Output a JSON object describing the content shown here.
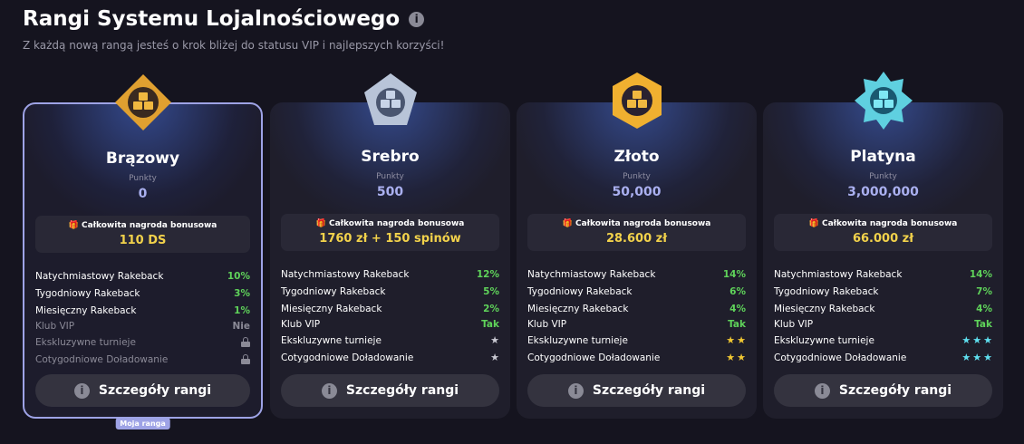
{
  "header": {
    "title": "Rangi Systemu Lojalnościowego",
    "subtitle": "Z każdą nową rangą jesteś o krok bliżej do statusu VIP i najlepszych korzyści!",
    "info_icon": "i"
  },
  "colors": {
    "accent": "#9ea3e6",
    "green": "#5fd35a",
    "gold": "#f2d24b",
    "silver_star": "#c9c9d2",
    "cyan_star": "#5fe0f0"
  },
  "tiers": [
    {
      "name": "Brązowy",
      "points_label": "Punkty",
      "points": "0",
      "bonus_label": "Całkowita nagroda bonusowa",
      "bonus": "110 DS",
      "current": true,
      "current_label": "Moja ranga",
      "badge_color": "#e0a030",
      "rows": [
        {
          "label": "Natychmiastowy Rakeback",
          "value": "10%"
        },
        {
          "label": "Tygodniowy Rakeback",
          "value": "3%"
        },
        {
          "label": "Miesięczny Rakeback",
          "value": "1%"
        },
        {
          "label": "Klub VIP",
          "value": "Nie"
        },
        {
          "label": "Ekskluzywne turnieje",
          "icon": "lock-icon"
        },
        {
          "label": "Cotygodniowe Doładowanie",
          "icon": "lock-icon"
        }
      ],
      "button": "Szczegóły rangi"
    },
    {
      "name": "Srebro",
      "points_label": "Punkty",
      "points": "500",
      "bonus_label": "Całkowita nagroda bonusowa",
      "bonus": "1760 zł + 150 spinów",
      "badge_color": "#b8c4d8",
      "rows": [
        {
          "label": "Natychmiastowy Rakeback",
          "value": "12%"
        },
        {
          "label": "Tygodniowy Rakeback",
          "value": "5%"
        },
        {
          "label": "Miesięczny Rakeback",
          "value": "2%"
        },
        {
          "label": "Klub VIP",
          "value": "Tak"
        },
        {
          "label": "Ekskluzywne turnieje",
          "stars": 1
        },
        {
          "label": "Cotygodniowe Doładowanie",
          "stars": 1
        }
      ],
      "star_color": "#c9c9d2",
      "button": "Szczegóły rangi"
    },
    {
      "name": "Złoto",
      "points_label": "Punkty",
      "points": "50,000",
      "bonus_label": "Całkowita nagroda bonusowa",
      "bonus": "28.600 zł",
      "badge_color": "#f0b030",
      "rows": [
        {
          "label": "Natychmiastowy Rakeback",
          "value": "14%"
        },
        {
          "label": "Tygodniowy Rakeback",
          "value": "6%"
        },
        {
          "label": "Miesięczny Rakeback",
          "value": "4%"
        },
        {
          "label": "Klub VIP",
          "value": "Tak"
        },
        {
          "label": "Ekskluzywne turnieje",
          "stars": 2
        },
        {
          "label": "Cotygodniowe Doładowanie",
          "stars": 2
        }
      ],
      "star_color": "#f2c832",
      "button": "Szczegóły rangi"
    },
    {
      "name": "Platyna",
      "points_label": "Punkty",
      "points": "3,000,000",
      "bonus_label": "Całkowita nagroda bonusowa",
      "bonus": "66.000 zł",
      "badge_color": "#5fd0e0",
      "rows": [
        {
          "label": "Natychmiastowy Rakeback",
          "value": "14%"
        },
        {
          "label": "Tygodniowy Rakeback",
          "value": "7%"
        },
        {
          "label": "Miesięczny Rakeback",
          "value": "4%"
        },
        {
          "label": "Klub VIP",
          "value": "Tak"
        },
        {
          "label": "Ekskluzywne turnieje",
          "stars": 3
        },
        {
          "label": "Cotygodniowe Doładowanie",
          "stars": 3
        }
      ],
      "star_color": "#5fe0f0",
      "button": "Szczegóły rangi"
    }
  ]
}
